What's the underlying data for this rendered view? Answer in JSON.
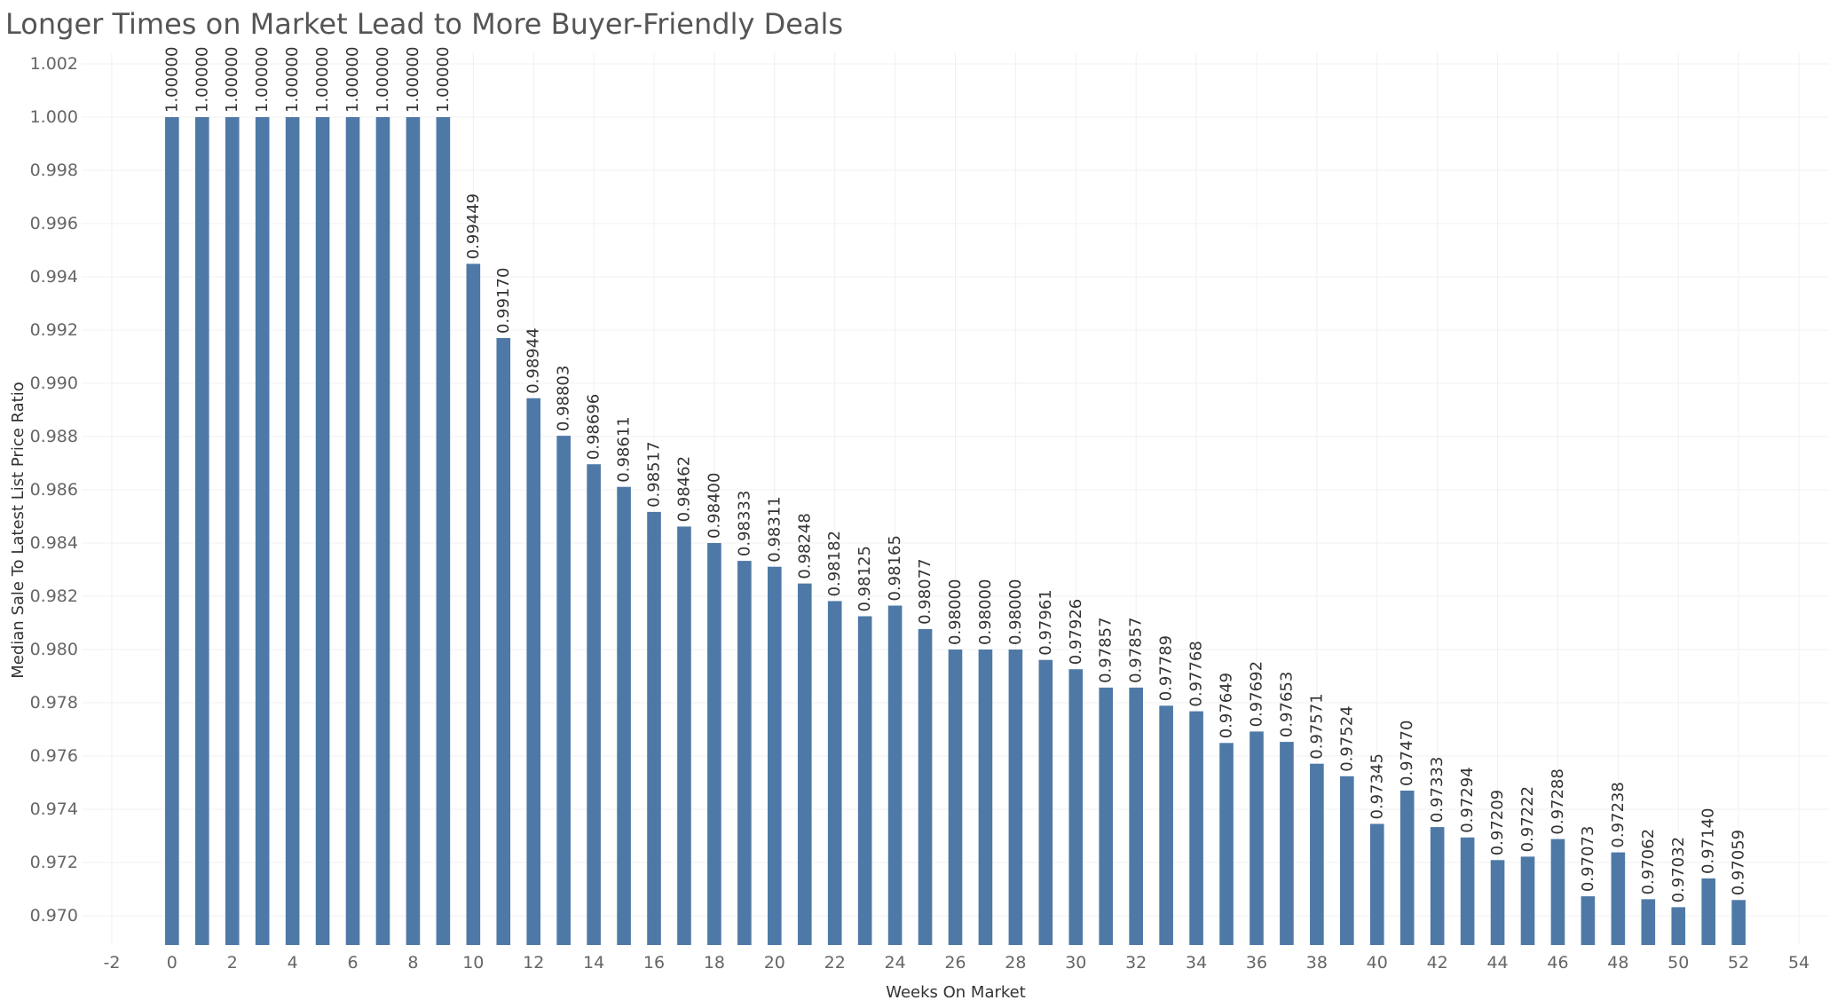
{
  "chart_data": {
    "type": "bar",
    "title": "Longer Times on Market Lead to More Buyer-Friendly Deals",
    "xlabel": "Weeks On Market",
    "ylabel": "Median Sale To Latest List Price Ratio",
    "x": [
      0,
      1,
      2,
      3,
      4,
      5,
      6,
      7,
      8,
      9,
      10,
      11,
      12,
      13,
      14,
      15,
      16,
      17,
      18,
      19,
      20,
      21,
      22,
      23,
      24,
      25,
      26,
      27,
      28,
      29,
      30,
      31,
      32,
      33,
      34,
      35,
      36,
      37,
      38,
      39,
      40,
      41,
      42,
      43,
      44,
      45,
      46,
      47,
      48,
      49,
      50,
      51,
      52
    ],
    "values": [
      1.0,
      1.0,
      1.0,
      1.0,
      1.0,
      1.0,
      1.0,
      1.0,
      1.0,
      1.0,
      0.99449,
      0.9917,
      0.98944,
      0.98803,
      0.98696,
      0.98611,
      0.98517,
      0.98462,
      0.984,
      0.98333,
      0.98311,
      0.98248,
      0.98182,
      0.98125,
      0.98165,
      0.98077,
      0.98,
      0.98,
      0.98,
      0.97961,
      0.97926,
      0.97857,
      0.97857,
      0.97789,
      0.97768,
      0.97649,
      0.97692,
      0.97653,
      0.97571,
      0.97524,
      0.97345,
      0.9747,
      0.97333,
      0.97294,
      0.97209,
      0.97222,
      0.97288,
      0.97073,
      0.97238,
      0.97062,
      0.97032,
      0.9714,
      0.97059
    ],
    "value_labels": [
      "1.00000",
      "1.00000",
      "1.00000",
      "1.00000",
      "1.00000",
      "1.00000",
      "1.00000",
      "1.00000",
      "1.00000",
      "1.00000",
      "0.99449",
      "0.99170",
      "0.98944",
      "0.98803",
      "0.98696",
      "0.98611",
      "0.98517",
      "0.98462",
      "0.98400",
      "0.98333",
      "0.98311",
      "0.98248",
      "0.98182",
      "0.98125",
      "0.98165",
      "0.98077",
      "0.98000",
      "0.98000",
      "0.98000",
      "0.97961",
      "0.97926",
      "0.97857",
      "0.97857",
      "0.97789",
      "0.97768",
      "0.97649",
      "0.97692",
      "0.97653",
      "0.97571",
      "0.97524",
      "0.97345",
      "0.97470",
      "0.97333",
      "0.97294",
      "0.97209",
      "0.97222",
      "0.97288",
      "0.97073",
      "0.97238",
      "0.97062",
      "0.97032",
      "0.97140",
      "0.97059"
    ],
    "xlim": [
      -3,
      55
    ],
    "ylim": [
      0.9689,
      1.0024
    ],
    "x_ticks": [
      -2,
      0,
      2,
      4,
      6,
      8,
      10,
      12,
      14,
      16,
      18,
      20,
      22,
      24,
      26,
      28,
      30,
      32,
      34,
      36,
      38,
      40,
      42,
      44,
      46,
      48,
      50,
      52,
      54
    ],
    "x_tick_labels": [
      "-2",
      "0",
      "2",
      "4",
      "6",
      "8",
      "10",
      "12",
      "14",
      "16",
      "18",
      "20",
      "22",
      "24",
      "26",
      "28",
      "30",
      "32",
      "34",
      "36",
      "38",
      "40",
      "42",
      "44",
      "46",
      "48",
      "50",
      "52",
      "54"
    ],
    "y_ticks": [
      0.97,
      0.972,
      0.974,
      0.976,
      0.978,
      0.98,
      0.982,
      0.984,
      0.986,
      0.988,
      0.99,
      0.992,
      0.994,
      0.996,
      0.998,
      1.0,
      1.002
    ],
    "y_tick_labels": [
      "0.970",
      "0.972",
      "0.974",
      "0.976",
      "0.978",
      "0.980",
      "0.982",
      "0.984",
      "0.986",
      "0.988",
      "0.990",
      "0.992",
      "0.994",
      "0.996",
      "0.998",
      "1.000",
      "1.002"
    ],
    "grid": true,
    "bar_color": "#4e79a7",
    "grid_color": "#f0f0f0"
  }
}
